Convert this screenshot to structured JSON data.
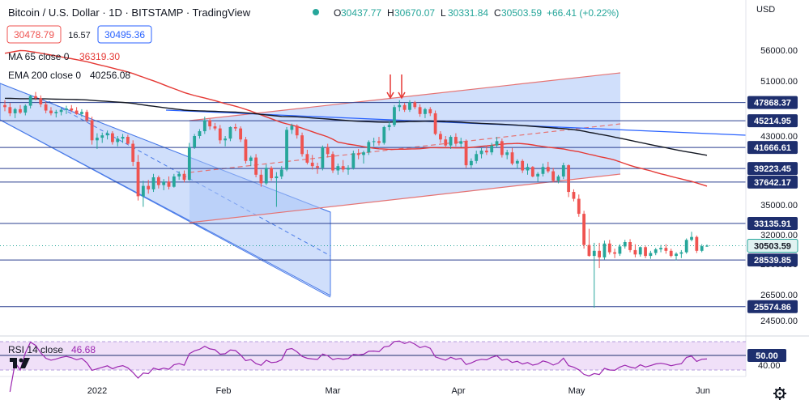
{
  "header": {
    "symbol": "Bitcoin / U.S. Dollar · 1D · BITSTAMP · TradingView",
    "ohlc": [
      {
        "k": "O",
        "v": "30437.77"
      },
      {
        "k": "H",
        "v": "30670.07"
      },
      {
        "k": "L",
        "v": "30331.84"
      },
      {
        "k": "C",
        "v": "30503.59"
      }
    ],
    "change": "+66.41 (+0.22%)",
    "sell": "30478.79",
    "spread": "16.57",
    "buy": "30495.36",
    "currency": "USD"
  },
  "indicators": {
    "ma_label": "MA 65 close 0",
    "ma_value": "36319.30",
    "ema_label": "EMA 200 close 0",
    "ema_value": "40256.08",
    "rsi_label": "RSI 14 close",
    "rsi_value": "46.68"
  },
  "colors": {
    "up": "#26a69a",
    "down": "#ef5350",
    "ma": "#e53935",
    "ema": "#131722",
    "channel_fill": "#aac4f7",
    "channel_line": "#4a7be8",
    "level": "#2a3f8f",
    "tag": "#1e2f6e",
    "rsi_line": "#9c27b0",
    "rsi_band": "#e9d3f5"
  },
  "chart_data": {
    "type": "candlestick",
    "yaxis_ticks": [
      "56000.00",
      "51000.00",
      "43000.00",
      "35000.00",
      "32000.00",
      "28000.00",
      "26500.00",
      "24500.00"
    ],
    "price_levels": [
      "47868.37",
      "45214.95",
      "41666.61",
      "39223.45",
      "37642.17",
      "33135.91",
      "28539.85",
      "25574.86"
    ],
    "last_price": "30503.59",
    "xaxis_ticks": [
      "2022",
      "Feb",
      "Mar",
      "Apr",
      "May",
      "Jun"
    ],
    "rsi_level": "50.00",
    "rsi_tick": "40.00",
    "candles": [
      [
        47500,
        48200,
        46600,
        47200
      ],
      [
        47200,
        47800,
        45900,
        46300
      ],
      [
        46300,
        47100,
        45600,
        46900
      ],
      [
        46900,
        47500,
        46200,
        46400
      ],
      [
        46400,
        47600,
        46000,
        47400
      ],
      [
        47400,
        49000,
        47000,
        48800
      ],
      [
        48800,
        49400,
        48200,
        48500
      ],
      [
        48500,
        48900,
        47200,
        47600
      ],
      [
        47600,
        48000,
        46300,
        46700
      ],
      [
        46700,
        47200,
        46000,
        46300
      ],
      [
        46300,
        46800,
        45700,
        46500
      ],
      [
        46500,
        47100,
        46000,
        46800
      ],
      [
        46800,
        47400,
        46200,
        47000
      ],
      [
        47000,
        47500,
        46500,
        46700
      ],
      [
        46700,
        47200,
        46100,
        46200
      ],
      [
        46200,
        46900,
        45800,
        46500
      ],
      [
        46500,
        46800,
        45000,
        45300
      ],
      [
        45300,
        45800,
        42000,
        42500
      ],
      [
        42500,
        43400,
        41500,
        42800
      ],
      [
        42800,
        43500,
        42200,
        43100
      ],
      [
        43100,
        43800,
        42600,
        43400
      ],
      [
        43400,
        43700,
        42000,
        42300
      ],
      [
        42300,
        43000,
        41800,
        42700
      ],
      [
        42700,
        43300,
        42200,
        42900
      ],
      [
        42900,
        43200,
        42000,
        42100
      ],
      [
        42100,
        42500,
        39500,
        40000
      ],
      [
        40000,
        40800,
        35500,
        36000
      ],
      [
        36000,
        37800,
        34800,
        37200
      ],
      [
        37200,
        37900,
        36300,
        36800
      ],
      [
        36800,
        38600,
        36500,
        38200
      ],
      [
        38200,
        38400,
        36900,
        37300
      ],
      [
        37300,
        38000,
        36700,
        37700
      ],
      [
        37700,
        38300,
        36800,
        37100
      ],
      [
        37100,
        38600,
        37000,
        38300
      ],
      [
        38300,
        38900,
        37900,
        38600
      ],
      [
        38600,
        39000,
        37600,
        37900
      ],
      [
        37900,
        42200,
        37800,
        41700
      ],
      [
        41700,
        43300,
        41500,
        43000
      ],
      [
        43000,
        44000,
        42700,
        43700
      ],
      [
        43700,
        45800,
        43300,
        45300
      ],
      [
        45300,
        45500,
        43900,
        44400
      ],
      [
        44400,
        44900,
        43800,
        44100
      ],
      [
        44100,
        44600,
        42100,
        42500
      ],
      [
        42500,
        43000,
        41800,
        42700
      ],
      [
        42700,
        44400,
        42400,
        44300
      ],
      [
        44300,
        44800,
        43700,
        44100
      ],
      [
        44100,
        44400,
        42300,
        42600
      ],
      [
        42600,
        42900,
        39800,
        40100
      ],
      [
        40100,
        40700,
        39500,
        40500
      ],
      [
        40500,
        40900,
        38200,
        38500
      ],
      [
        38500,
        39100,
        37100,
        37500
      ],
      [
        37500,
        39700,
        37300,
        39300
      ],
      [
        39300,
        39500,
        37800,
        38100
      ],
      [
        38100,
        38800,
        34800,
        38300
      ],
      [
        38300,
        39500,
        38000,
        39100
      ],
      [
        39100,
        44300,
        38900,
        43900
      ],
      [
        43900,
        44800,
        43300,
        44500
      ],
      [
        44500,
        44700,
        42700,
        43100
      ],
      [
        43100,
        43500,
        40600,
        40900
      ],
      [
        40900,
        41400,
        39700,
        39900
      ],
      [
        39900,
        40800,
        39100,
        39500
      ],
      [
        39500,
        39900,
        38600,
        39300
      ],
      [
        39300,
        41900,
        39000,
        41700
      ],
      [
        41700,
        42100,
        40500,
        40900
      ],
      [
        40900,
        41200,
        38700,
        39000
      ],
      [
        39000,
        39800,
        38500,
        39500
      ],
      [
        39500,
        40200,
        38800,
        39100
      ],
      [
        39100,
        39600,
        38500,
        39300
      ],
      [
        39300,
        41300,
        39100,
        41000
      ],
      [
        41000,
        41500,
        40300,
        40800
      ],
      [
        40800,
        41300,
        39800,
        41100
      ],
      [
        41100,
        42500,
        40800,
        42300
      ],
      [
        42300,
        42800,
        41800,
        42400
      ],
      [
        42400,
        42900,
        41900,
        42200
      ],
      [
        42200,
        44500,
        42000,
        44300
      ],
      [
        44300,
        45100,
        43800,
        44600
      ],
      [
        44600,
        47500,
        44300,
        47200
      ],
      [
        47200,
        48200,
        46600,
        47500
      ],
      [
        47500,
        47800,
        46500,
        46800
      ],
      [
        46800,
        48200,
        46500,
        47900
      ],
      [
        47900,
        48100,
        46900,
        47200
      ],
      [
        47200,
        47600,
        45800,
        46200
      ],
      [
        46200,
        47100,
        45600,
        46900
      ],
      [
        46900,
        47200,
        45900,
        46300
      ],
      [
        46300,
        46700,
        43100,
        43300
      ],
      [
        43300,
        43700,
        42200,
        42600
      ],
      [
        42600,
        43000,
        41600,
        41900
      ],
      [
        41900,
        43100,
        41500,
        42900
      ],
      [
        42900,
        43400,
        41800,
        42100
      ],
      [
        42100,
        42800,
        41700,
        42400
      ],
      [
        42400,
        42600,
        39300,
        39600
      ],
      [
        39600,
        40400,
        39300,
        40100
      ],
      [
        40100,
        41300,
        39800,
        40900
      ],
      [
        40900,
        41600,
        40400,
        41300
      ],
      [
        41300,
        41800,
        40800,
        41100
      ],
      [
        41100,
        42200,
        40800,
        41900
      ],
      [
        41900,
        42900,
        41700,
        42400
      ],
      [
        42400,
        42700,
        40500,
        40800
      ],
      [
        40800,
        41400,
        40300,
        41100
      ],
      [
        41100,
        41600,
        39600,
        39800
      ],
      [
        39800,
        40300,
        39200,
        40100
      ],
      [
        40100,
        40300,
        38700,
        39000
      ],
      [
        39000,
        39800,
        38500,
        39400
      ],
      [
        39400,
        39500,
        38200,
        38300
      ],
      [
        38300,
        38800,
        37700,
        38600
      ],
      [
        38600,
        39800,
        38300,
        39400
      ],
      [
        39400,
        40000,
        38700,
        38900
      ],
      [
        38900,
        39300,
        37600,
        37800
      ],
      [
        37800,
        38500,
        37500,
        38300
      ],
      [
        38300,
        39900,
        38000,
        39600
      ],
      [
        39600,
        39700,
        35900,
        36500
      ],
      [
        36500,
        36800,
        35400,
        35700
      ],
      [
        35700,
        36200,
        33800,
        34100
      ],
      [
        34100,
        34400,
        30100,
        30600
      ],
      [
        30600,
        32600,
        29000,
        29100
      ],
      [
        29100,
        30900,
        25500,
        29800
      ],
      [
        29800,
        30900,
        27800,
        28900
      ],
      [
        28900,
        31200,
        28600,
        30800
      ],
      [
        30800,
        31300,
        29300,
        29600
      ],
      [
        29600,
        30100,
        28800,
        29400
      ],
      [
        29400,
        30700,
        29100,
        30400
      ],
      [
        30400,
        31300,
        30100,
        31000
      ],
      [
        31000,
        31400,
        29600,
        29900
      ],
      [
        29900,
        30700,
        28900,
        29300
      ],
      [
        29300,
        30400,
        29000,
        30300
      ],
      [
        30300,
        30500,
        28800,
        29100
      ],
      [
        29100,
        29800,
        28700,
        29500
      ],
      [
        29500,
        30200,
        29200,
        30000
      ],
      [
        30000,
        30600,
        29600,
        30200
      ],
      [
        30200,
        30700,
        29400,
        29800
      ],
      [
        29800,
        30100,
        28900,
        29100
      ],
      [
        29100,
        29600,
        28500,
        29400
      ],
      [
        29400,
        29900,
        28800,
        29600
      ],
      [
        29600,
        31500,
        29400,
        31300
      ],
      [
        31300,
        32300,
        31100,
        31700
      ],
      [
        31700,
        31900,
        29500,
        29800
      ],
      [
        29800,
        30700,
        29600,
        30437
      ],
      [
        30437,
        30670,
        30331,
        30503
      ]
    ]
  }
}
